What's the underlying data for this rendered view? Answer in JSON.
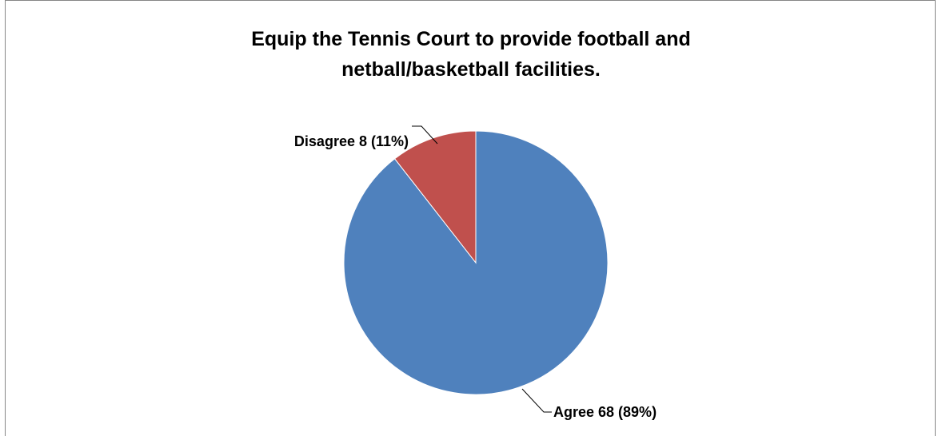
{
  "chart_data": {
    "type": "pie",
    "title": "Equip the Tennis Court to provide football and netball/basketball facilities.",
    "slices": [
      {
        "label": "Agree",
        "value": 68,
        "percent": "89%",
        "data_label": "Agree 68 (89%)",
        "color": "#4F81BD"
      },
      {
        "label": "Disagree",
        "value": 8,
        "percent": "11%",
        "data_label": "Disagree 8 (11%)",
        "color": "#C0504D"
      }
    ],
    "legend": "none",
    "start_angle": "12 o'clock, clockwise"
  }
}
